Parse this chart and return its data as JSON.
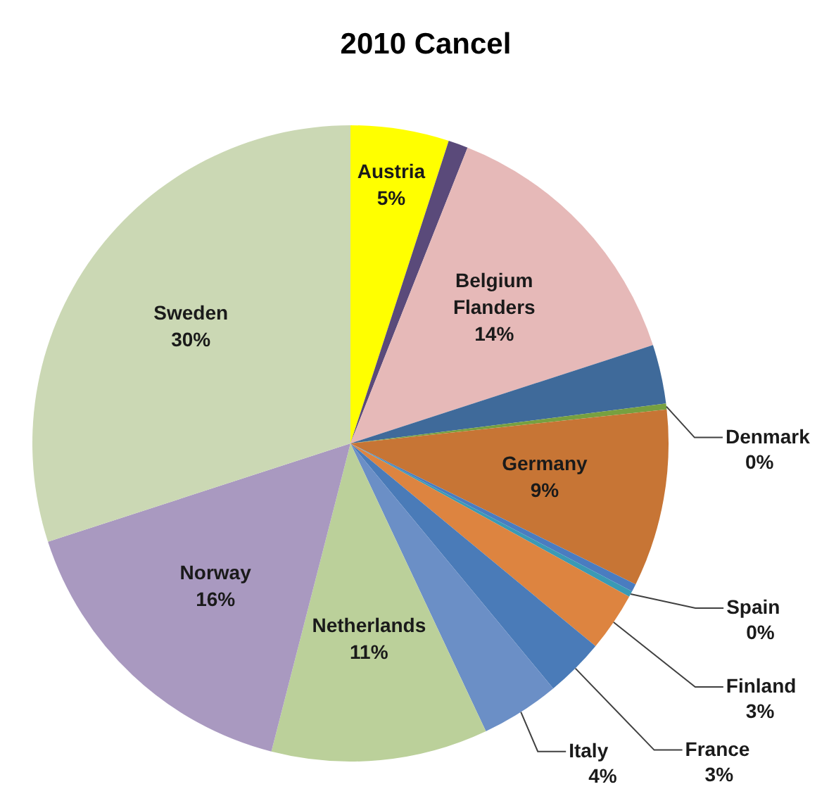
{
  "chart_data": {
    "type": "pie",
    "title": "2010 Cancel",
    "categories": [
      "Austria",
      null,
      "Belgium Flanders",
      null,
      "Denmark",
      "Germany",
      null,
      "Spain",
      "Finland",
      "France",
      "Italy",
      "Netherlands",
      "Norway",
      "Sweden"
    ],
    "values": [
      5,
      1,
      14,
      3,
      0.3,
      9,
      0.4,
      0.3,
      3,
      3,
      4,
      11,
      16,
      30
    ],
    "value_labels": [
      "5%",
      null,
      "14%",
      null,
      "0%",
      "9%",
      null,
      "0%",
      "3%",
      "3%",
      "4%",
      "11%",
      "16%",
      "30%"
    ],
    "colors": [
      "#ffff00",
      "#5a4a7a",
      "#e6b9b8",
      "#3f6a9a",
      "#77a040",
      "#c77535",
      "#4a7cc0",
      "#3a9ab5",
      "#dd8440",
      "#4a7bb8",
      "#6b8fc6",
      "#bbd09a",
      "#a999c0",
      "#cbd8b4"
    ]
  }
}
